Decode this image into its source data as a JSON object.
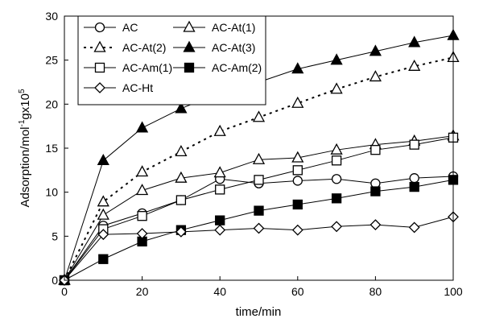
{
  "chart_data": {
    "type": "line",
    "xlabel": "time/min",
    "ylabel": "Adsorption/mol",
    "ylabel_sup1": "-1",
    "ylabel_mid": "gx10",
    "ylabel_sup2": "5",
    "xlim": [
      0,
      100
    ],
    "ylim": [
      0,
      30
    ],
    "xticks": [
      0,
      20,
      40,
      60,
      80,
      100
    ],
    "yticks": [
      0,
      5,
      10,
      15,
      20,
      25,
      30
    ],
    "grid": false,
    "legend_placement": "top-left",
    "x": [
      0,
      10,
      20,
      30,
      40,
      50,
      60,
      70,
      80,
      90,
      100
    ],
    "series": [
      {
        "name": "AC",
        "marker": "circle-open",
        "dash": false,
        "values": [
          0,
          6.2,
          7.6,
          9.1,
          11.5,
          11.0,
          11.3,
          11.5,
          11.0,
          11.6,
          11.8
        ]
      },
      {
        "name": "AC-At(1)",
        "marker": "triangle-open",
        "dash": false,
        "values": [
          0,
          7.4,
          10.2,
          11.6,
          12.2,
          13.7,
          13.9,
          14.8,
          15.4,
          15.8,
          16.4
        ]
      },
      {
        "name": "AC-At(2)",
        "marker": "triangle-open",
        "dash": true,
        "values": [
          0,
          8.9,
          12.3,
          14.6,
          16.9,
          18.5,
          20.1,
          21.7,
          23.1,
          24.3,
          25.3
        ]
      },
      {
        "name": "AC-At(3)",
        "marker": "triangle-filled",
        "dash": false,
        "values": [
          0,
          13.6,
          17.3,
          19.5,
          21.3,
          22.5,
          24.0,
          25.0,
          26.0,
          27.0,
          27.8
        ]
      },
      {
        "name": "AC-Am(1)",
        "marker": "square-open",
        "dash": false,
        "values": [
          0,
          5.8,
          7.3,
          9.1,
          10.3,
          11.4,
          12.5,
          13.6,
          14.8,
          15.4,
          16.2
        ]
      },
      {
        "name": "AC-Am(2)",
        "marker": "square-filled",
        "dash": false,
        "values": [
          0,
          2.4,
          4.4,
          5.7,
          6.8,
          7.9,
          8.6,
          9.3,
          10.1,
          10.6,
          11.4
        ]
      },
      {
        "name": "AC-Ht",
        "marker": "diamond-open",
        "dash": false,
        "values": [
          0,
          5.2,
          5.3,
          5.5,
          5.7,
          5.9,
          5.7,
          6.1,
          6.3,
          6.0,
          7.2
        ]
      }
    ]
  }
}
